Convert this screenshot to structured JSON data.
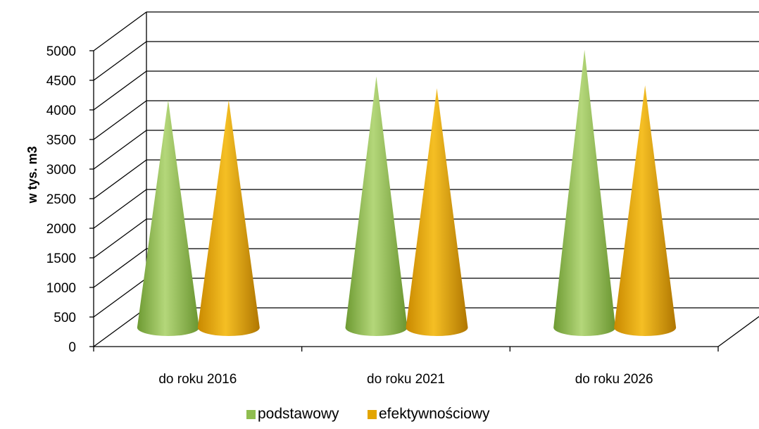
{
  "chart_data": {
    "type": "bar",
    "subtype": "3d-cone",
    "title": "",
    "xlabel": "",
    "ylabel": "w tys. m3",
    "categories": [
      "do roku 2016",
      "do roku 2021",
      "do roku 2026"
    ],
    "series": [
      {
        "name": "podstawowy",
        "values": [
          3900,
          4300,
          4750
        ],
        "color": "#8fbd4f"
      },
      {
        "name": "efektywnościowy",
        "values": [
          3900,
          4100,
          4150
        ],
        "color": "#e3a500"
      }
    ],
    "ylim": [
      0,
      5000
    ],
    "yticks": [
      "0",
      "500",
      "1000",
      "1500",
      "2000",
      "2500",
      "3000",
      "3500",
      "4000",
      "4500",
      "5000"
    ],
    "grid": true,
    "legend_position": "bottom"
  }
}
